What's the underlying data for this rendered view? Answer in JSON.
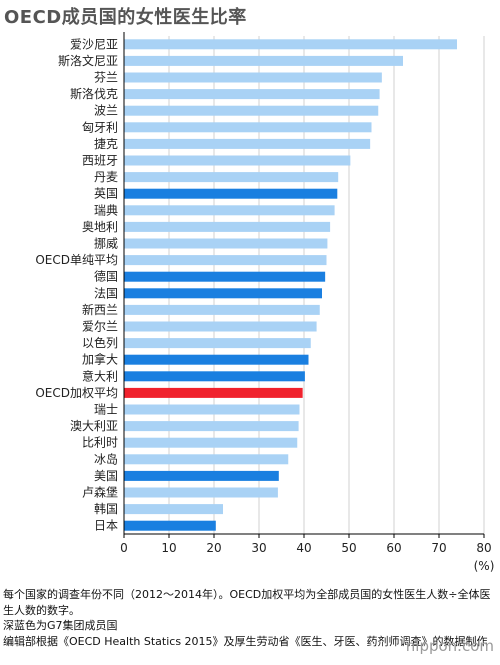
{
  "chart_data": {
    "type": "bar",
    "orientation": "horizontal",
    "title": "OECD成员国的女性医生比率",
    "unit": "(%)",
    "xlim": [
      0,
      80
    ],
    "xticks": [
      0,
      10,
      20,
      30,
      40,
      50,
      60,
      70,
      80
    ],
    "grid": true,
    "categories": [
      "爱沙尼亚",
      "斯洛文尼亚",
      "芬兰",
      "斯洛伐克",
      "波兰",
      "匈牙利",
      "捷克",
      "西班牙",
      "丹麦",
      "英国",
      "瑞典",
      "奥地利",
      "挪威",
      "OECD单纯平均",
      "德国",
      "法国",
      "新西兰",
      "爱尔兰",
      "以色列",
      "加拿大",
      "意大利",
      "OECD加权平均",
      "瑞士",
      "澳大利亚",
      "比利时",
      "冰岛",
      "美国",
      "卢森堡",
      "韩国",
      "日本"
    ],
    "values": [
      74,
      62,
      57.3,
      56.8,
      56.5,
      55,
      54.7,
      50.3,
      47.6,
      47.4,
      46.8,
      45.8,
      45.2,
      45,
      44.7,
      44,
      43.5,
      42.8,
      41.5,
      41,
      40.2,
      39.7,
      39,
      38.8,
      38.5,
      36.5,
      34.4,
      34.2,
      22,
      20.4
    ],
    "highlight": {
      "g7": [
        "英国",
        "德国",
        "法国",
        "加拿大",
        "意大利",
        "美国",
        "日本"
      ],
      "weighted_average": [
        "OECD加权平均"
      ]
    },
    "colors": {
      "default": "#a9d2f5",
      "g7": "#1a7fe0",
      "weighted_average": "#f0222d",
      "grid": "#d0d0d0",
      "axis": "#000000"
    }
  },
  "notes": [
    "每个国家的调查年份不同（2012～2014年）。OECD加权平均为全部成员国的女性医生人数÷全体医生人数的数字。",
    "深蓝色为G7集团成员国",
    "编辑部根据《OECD Health Statics 2015》及厚生劳动省《医生、牙医、药剂师调查》的数据制作"
  ],
  "watermark": "nippon.com"
}
